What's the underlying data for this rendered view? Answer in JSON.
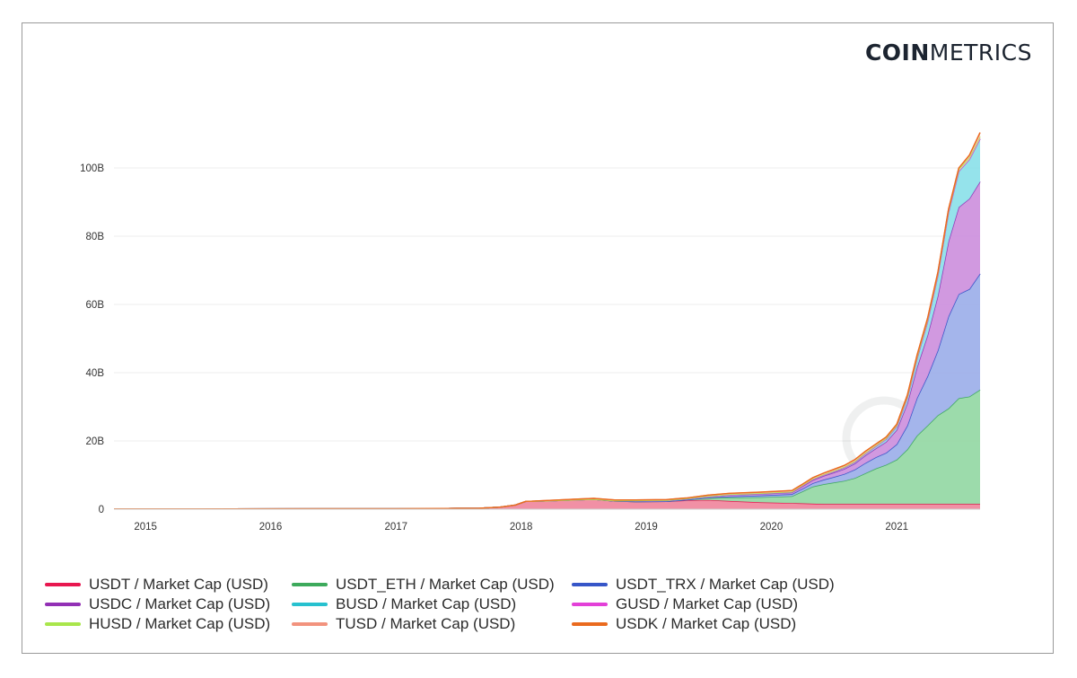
{
  "brand": {
    "bold": "COIN",
    "light": "METRICS"
  },
  "chart_data": {
    "type": "area",
    "stacked": true,
    "title": "",
    "xlabel": "",
    "ylabel": "",
    "x_ticks": [
      "2015",
      "2016",
      "2017",
      "2018",
      "2019",
      "2020",
      "2021"
    ],
    "y_ticks": [
      "0",
      "20B",
      "40B",
      "60B",
      "80B",
      "100B"
    ],
    "ylim": [
      0,
      115
    ],
    "y_unit": "billion USD",
    "xlim": [
      "2014-10-01",
      "2021-09-01"
    ],
    "grid": "horizontal",
    "legend_position": "bottom",
    "x": [
      "2014-10-01",
      "2015-06-01",
      "2016-06-01",
      "2017-01-01",
      "2017-06-01",
      "2017-09-01",
      "2017-11-01",
      "2017-12-15",
      "2018-01-15",
      "2018-02-01",
      "2018-04-01",
      "2018-06-01",
      "2018-08-01",
      "2018-10-01",
      "2018-12-01",
      "2019-03-01",
      "2019-05-01",
      "2019-07-01",
      "2019-09-01",
      "2019-12-01",
      "2020-03-01",
      "2020-04-01",
      "2020-05-01",
      "2020-06-01",
      "2020-07-01",
      "2020-08-01",
      "2020-09-01",
      "2020-10-01",
      "2020-11-01",
      "2020-12-01",
      "2021-01-01",
      "2021-02-01",
      "2021-03-01",
      "2021-04-01",
      "2021-05-01",
      "2021-06-01",
      "2021-07-01",
      "2021-08-01",
      "2021-09-01"
    ],
    "series": [
      {
        "name": "USDT / Market Cap (USD)",
        "color": "#e8174f",
        "fill": "#f08aa0",
        "values": [
          0.05,
          0.05,
          0.1,
          0.1,
          0.2,
          0.3,
          0.6,
          1.2,
          2.3,
          2.3,
          2.5,
          2.7,
          2.9,
          2.4,
          2.2,
          2.3,
          2.6,
          2.7,
          2.4,
          2.0,
          1.8,
          1.7,
          1.6,
          1.5,
          1.5,
          1.5,
          1.5,
          1.5,
          1.5,
          1.5,
          1.5,
          1.5,
          1.5,
          1.5,
          1.5,
          1.5,
          1.5,
          1.5,
          1.5
        ]
      },
      {
        "name": "USDT_ETH / Market Cap (USD)",
        "color": "#3daa5c",
        "fill": "#97d9a6",
        "values": [
          0,
          0,
          0,
          0,
          0,
          0,
          0,
          0,
          0,
          0,
          0,
          0,
          0,
          0,
          0,
          0,
          0.2,
          0.6,
          1.0,
          1.5,
          2.0,
          3.5,
          5.0,
          5.8,
          6.3,
          6.8,
          7.6,
          9.0,
          10.4,
          11.5,
          13.0,
          16.0,
          20.0,
          23.0,
          26.0,
          28.0,
          31.0,
          31.5,
          33.5
        ]
      },
      {
        "name": "USDT_TRX / Market Cap (USD)",
        "color": "#3656c8",
        "fill": "#9fb1ea",
        "values": [
          0,
          0,
          0,
          0,
          0,
          0,
          0,
          0,
          0,
          0,
          0,
          0,
          0,
          0,
          0,
          0,
          0,
          0.1,
          0.3,
          0.5,
          0.6,
          0.8,
          1.0,
          1.3,
          1.6,
          2.0,
          2.5,
          3.0,
          3.3,
          3.5,
          4.5,
          7.0,
          11.0,
          14.5,
          19.0,
          27.0,
          30.5,
          31.5,
          34.0
        ]
      },
      {
        "name": "USDC / Market Cap (USD)",
        "color": "#9230b5",
        "fill": "#cf93de",
        "values": [
          0,
          0,
          0,
          0,
          0,
          0,
          0,
          0,
          0,
          0,
          0,
          0,
          0,
          0.1,
          0.3,
          0.3,
          0.3,
          0.4,
          0.5,
          0.5,
          0.5,
          0.7,
          0.9,
          1.1,
          1.3,
          1.5,
          1.8,
          2.2,
          2.6,
          3.2,
          4.2,
          6.5,
          9.0,
          12.0,
          16.0,
          22.0,
          25.5,
          26.5,
          27.0
        ]
      },
      {
        "name": "BUSD / Market Cap (USD)",
        "color": "#27c1cf",
        "fill": "#8fe2ea",
        "values": [
          0,
          0,
          0,
          0,
          0,
          0,
          0,
          0,
          0,
          0,
          0,
          0,
          0,
          0,
          0,
          0,
          0,
          0,
          0.02,
          0.05,
          0.1,
          0.15,
          0.2,
          0.25,
          0.3,
          0.35,
          0.4,
          0.5,
          0.6,
          0.8,
          1.0,
          1.6,
          2.5,
          4.0,
          6.0,
          8.5,
          10.5,
          11.5,
          12.5
        ]
      },
      {
        "name": "GUSD / Market Cap (USD)",
        "color": "#e340d8",
        "fill": "#f2a6ee",
        "values": [
          0,
          0,
          0,
          0,
          0,
          0,
          0,
          0,
          0,
          0,
          0,
          0,
          0,
          0.01,
          0.02,
          0.02,
          0.02,
          0.02,
          0.02,
          0.02,
          0.02,
          0.02,
          0.02,
          0.02,
          0.02,
          0.02,
          0.02,
          0.02,
          0.02,
          0.03,
          0.03,
          0.04,
          0.05,
          0.05,
          0.05,
          0.05,
          0.05,
          0.05,
          0.05
        ]
      },
      {
        "name": "HUSD / Market Cap (USD)",
        "color": "#a9e64b",
        "fill": "#d6f2a9",
        "values": [
          0,
          0,
          0,
          0,
          0,
          0,
          0,
          0,
          0,
          0,
          0,
          0,
          0,
          0,
          0,
          0,
          0,
          0.05,
          0.1,
          0.1,
          0.12,
          0.15,
          0.18,
          0.2,
          0.2,
          0.25,
          0.25,
          0.3,
          0.3,
          0.3,
          0.35,
          0.4,
          0.5,
          0.6,
          0.6,
          0.6,
          0.6,
          0.6,
          0.6
        ]
      },
      {
        "name": "TUSD / Market Cap (USD)",
        "color": "#f2937e",
        "fill": "#f9c7bb",
        "values": [
          0,
          0,
          0,
          0,
          0,
          0,
          0,
          0,
          0.02,
          0.05,
          0.1,
          0.2,
          0.25,
          0.2,
          0.2,
          0.2,
          0.2,
          0.25,
          0.3,
          0.3,
          0.3,
          0.3,
          0.3,
          0.35,
          0.4,
          0.4,
          0.45,
          0.4,
          0.35,
          0.3,
          0.3,
          0.4,
          0.5,
          0.4,
          0.3,
          0.3,
          0.3,
          0.6,
          1.2
        ]
      },
      {
        "name": "USDK / Market Cap (USD)",
        "color": "#ea6a1e",
        "fill": "#f3b184",
        "values": [
          0,
          0,
          0,
          0,
          0,
          0,
          0,
          0,
          0,
          0,
          0,
          0,
          0,
          0,
          0,
          0,
          0,
          0,
          0.02,
          0.03,
          0.03,
          0.03,
          0.03,
          0.03,
          0.03,
          0.03,
          0.03,
          0.03,
          0.03,
          0.03,
          0.03,
          0.03,
          0.03,
          0.03,
          0.03,
          0.03,
          0.03,
          0.03,
          0.03
        ]
      }
    ]
  }
}
